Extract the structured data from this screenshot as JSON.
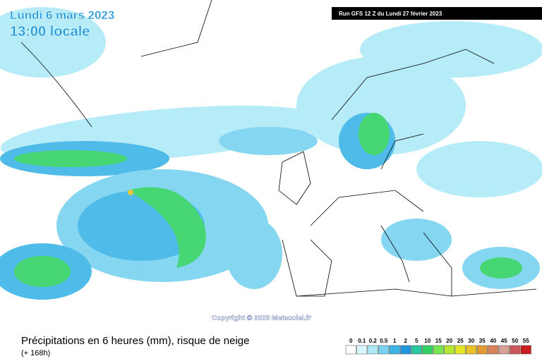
{
  "header": {
    "date": "Lundi 6 mars 2023",
    "time": "13:00 locale",
    "run": "Run GFS 12 Z du Lundi 27 février 2023"
  },
  "copyright": "Copyright © 2023 Meteociel.fr",
  "footer": {
    "title": "Précipitations en 6 heures (mm), risque de neige",
    "lead": "(+ 168h)"
  },
  "legend": {
    "items": [
      {
        "label": 0,
        "color": "#ffffff"
      },
      {
        "label": 0.1,
        "color": "#d8f6ff"
      },
      {
        "label": 0.2,
        "color": "#aeeaf8"
      },
      {
        "label": 0.5,
        "color": "#78d2f0"
      },
      {
        "label": 1,
        "color": "#3cb4e6"
      },
      {
        "label": 2,
        "color": "#1e96dc"
      },
      {
        "label": 5,
        "color": "#28c8a0"
      },
      {
        "label": 10,
        "color": "#32d264"
      },
      {
        "label": 15,
        "color": "#78e650"
      },
      {
        "label": 20,
        "color": "#b4e632"
      },
      {
        "label": 25,
        "color": "#e6e628"
      },
      {
        "label": 30,
        "color": "#e6c328"
      },
      {
        "label": 35,
        "color": "#e19b32"
      },
      {
        "label": 40,
        "color": "#d7825a"
      },
      {
        "label": 45,
        "color": "#d7a096"
      },
      {
        "label": 50,
        "color": "#cd5a5a"
      },
      {
        "label": 55,
        "color": "#c81e1e"
      }
    ]
  }
}
